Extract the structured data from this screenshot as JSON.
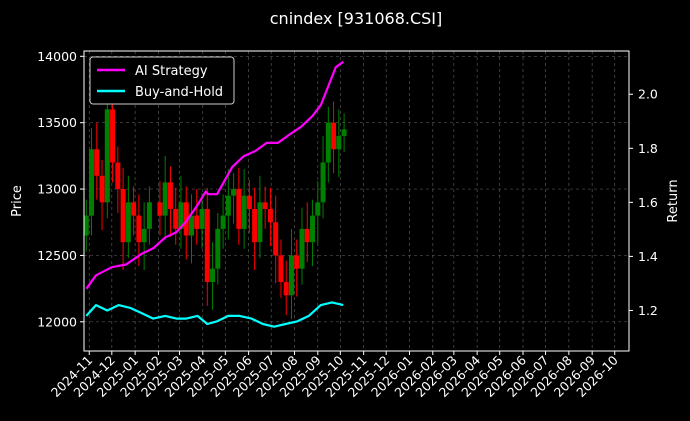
{
  "chart_data": {
    "type": "line",
    "title": "cnindex [931068.CSI]",
    "xlabel": "",
    "ylabel_left": "Price",
    "ylabel_right": "Return",
    "x_ticks": [
      "2024-11",
      "2024-12",
      "2025-01",
      "2025-02",
      "2025-03",
      "2025-04",
      "2025-05",
      "2025-06",
      "2025-07",
      "2025-08",
      "2025-09",
      "2025-10",
      "2025-11",
      "2025-12",
      "2026-01",
      "2026-02",
      "2026-03",
      "2026-04",
      "2026-05",
      "2026-06",
      "2026-07",
      "2026-08",
      "2026-09",
      "2026-10"
    ],
    "x_range": [
      "2024-10-25",
      "2026-10-20"
    ],
    "y_left_ticks": [
      "12000",
      "12500",
      "13000",
      "13500",
      "14000"
    ],
    "y_left_range": [
      11780,
      14040
    ],
    "y_right_ticks": [
      "1.2",
      "1.4",
      "1.6",
      "1.8",
      "2.0"
    ],
    "y_right_range": [
      1.05,
      2.16
    ],
    "grid": true,
    "legend_position": "top-left",
    "colors": {
      "up": "#008000",
      "down": "#ff0000",
      "ai": "#ff00ff",
      "bh": "#00ffff",
      "grid": "#555555",
      "background": "#000000"
    },
    "price": {
      "description": "daily candlesticks",
      "dates": [
        "2024-10-28",
        "2024-11-04",
        "2024-11-11",
        "2024-11-18",
        "2024-11-25",
        "2024-12-02",
        "2024-12-09",
        "2024-12-16",
        "2024-12-23",
        "2024-12-30",
        "2025-01-06",
        "2025-01-13",
        "2025-01-20",
        "2025-02-03",
        "2025-02-10",
        "2025-02-17",
        "2025-02-24",
        "2025-03-03",
        "2025-03-10",
        "2025-03-17",
        "2025-03-24",
        "2025-03-31",
        "2025-04-07",
        "2025-04-14",
        "2025-04-21",
        "2025-04-28",
        "2025-05-05",
        "2025-05-12",
        "2025-05-19",
        "2025-05-26",
        "2025-06-02",
        "2025-06-09",
        "2025-06-16",
        "2025-06-23",
        "2025-06-30",
        "2025-07-07",
        "2025-07-14",
        "2025-07-21",
        "2025-07-28",
        "2025-08-04",
        "2025-08-11",
        "2025-08-18",
        "2025-08-25",
        "2025-09-01",
        "2025-09-08",
        "2025-09-15",
        "2025-09-22",
        "2025-09-29",
        "2025-10-06"
      ],
      "close": [
        12800,
        13300,
        13100,
        12900,
        13600,
        13200,
        13000,
        12600,
        12900,
        12800,
        12600,
        12700,
        12900,
        12800,
        13050,
        12850,
        12700,
        12900,
        12650,
        12800,
        12700,
        12850,
        12300,
        12400,
        12700,
        12800,
        12950,
        13000,
        12700,
        12950,
        12850,
        12600,
        12900,
        12850,
        12750,
        12500,
        12300,
        12200,
        12500,
        12400,
        12700,
        12600,
        12800,
        12900,
        13200,
        13500,
        13300,
        13400,
        13450
      ]
    },
    "series": [
      {
        "name": "AI Strategy",
        "axis": "right",
        "dates": [
          "2024-10-28",
          "2024-11-10",
          "2024-12-01",
          "2024-12-20",
          "2025-01-10",
          "2025-01-25",
          "2025-02-10",
          "2025-02-25",
          "2025-03-10",
          "2025-03-25",
          "2025-04-05",
          "2025-04-08",
          "2025-04-20",
          "2025-05-10",
          "2025-05-25",
          "2025-06-10",
          "2025-06-25",
          "2025-07-10",
          "2025-07-25",
          "2025-08-10",
          "2025-08-25",
          "2025-09-05",
          "2025-09-15",
          "2025-09-25",
          "2025-10-05"
        ],
        "values": [
          1.28,
          1.33,
          1.36,
          1.37,
          1.41,
          1.43,
          1.47,
          1.49,
          1.53,
          1.59,
          1.64,
          1.63,
          1.63,
          1.73,
          1.77,
          1.79,
          1.82,
          1.82,
          1.85,
          1.88,
          1.92,
          1.96,
          2.03,
          2.1,
          2.12
        ]
      },
      {
        "name": "Buy-and-Hold",
        "axis": "right",
        "dates": [
          "2024-10-28",
          "2024-11-10",
          "2024-11-25",
          "2024-12-10",
          "2024-12-25",
          "2025-01-10",
          "2025-01-25",
          "2025-02-10",
          "2025-02-25",
          "2025-03-10",
          "2025-03-25",
          "2025-04-07",
          "2025-04-20",
          "2025-05-05",
          "2025-05-20",
          "2025-06-05",
          "2025-06-20",
          "2025-07-05",
          "2025-07-20",
          "2025-08-05",
          "2025-08-20",
          "2025-09-05",
          "2025-09-20",
          "2025-10-05"
        ],
        "values": [
          1.18,
          1.22,
          1.2,
          1.22,
          1.21,
          1.19,
          1.17,
          1.18,
          1.17,
          1.17,
          1.18,
          1.15,
          1.16,
          1.18,
          1.18,
          1.17,
          1.15,
          1.14,
          1.15,
          1.16,
          1.18,
          1.22,
          1.23,
          1.22
        ]
      }
    ]
  }
}
